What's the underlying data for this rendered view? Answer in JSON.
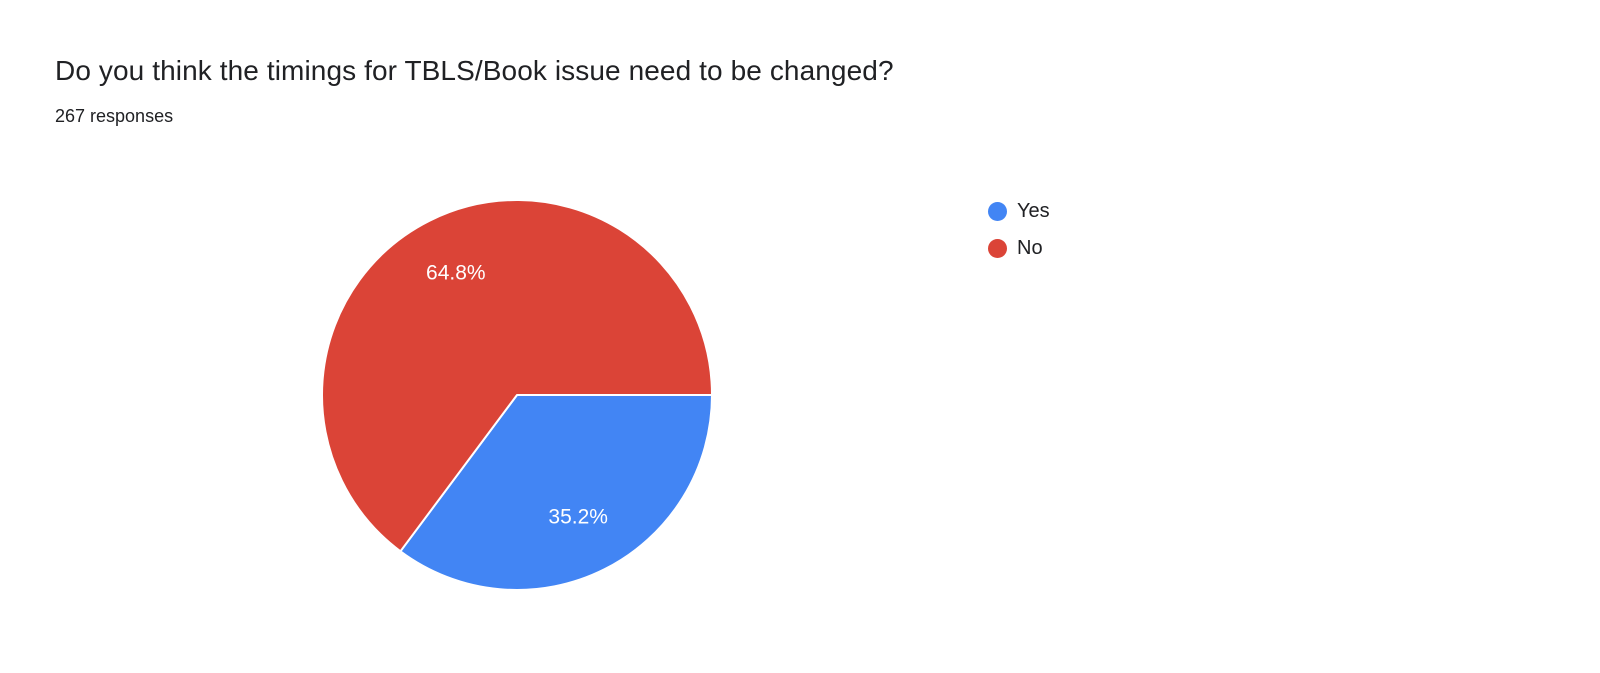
{
  "header": {
    "title": "Do you think the timings for TBLS/Book issue need to be changed?",
    "responses": "267 responses"
  },
  "chart_data": {
    "type": "pie",
    "title": "Do you think the timings for TBLS/Book issue need to be changed?",
    "responses_count": 267,
    "labels": [
      "Yes",
      "No"
    ],
    "values": [
      35.2,
      64.8
    ],
    "slice_labels": [
      "35.2%",
      "64.8%"
    ],
    "colors": [
      "#4285f4",
      "#db4437"
    ],
    "start_angle_deg": 0,
    "direction": "clockwise",
    "legend_position": "right"
  },
  "legend": {
    "items": [
      {
        "label": "Yes",
        "color": "#4285f4"
      },
      {
        "label": "No",
        "color": "#db4437"
      }
    ]
  }
}
